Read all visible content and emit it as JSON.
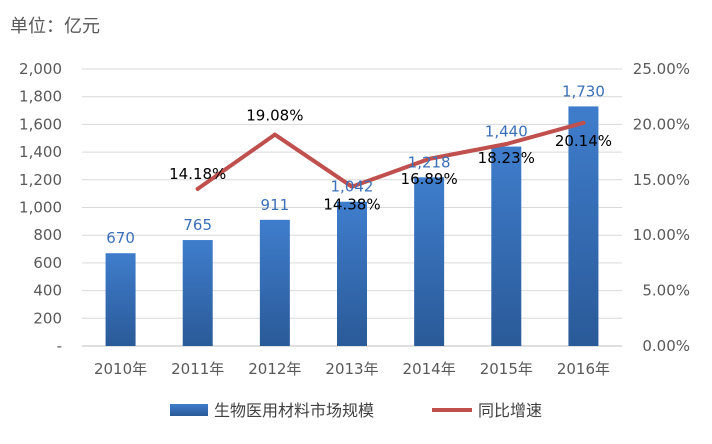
{
  "unit_label": "单位：亿元",
  "chart_data": {
    "type": "bar",
    "title": "",
    "categories": [
      "2010年",
      "2011年",
      "2012年",
      "2013年",
      "2014年",
      "2015年",
      "2016年"
    ],
    "series": [
      {
        "name": "生物医用材料市场规模",
        "type": "bar",
        "axis": "left",
        "values": [
          670,
          765,
          911,
          1042,
          1218,
          1440,
          1730
        ],
        "labels": [
          "670",
          "765",
          "911",
          "1,042",
          "1,218",
          "1,440",
          "1,730"
        ],
        "color": "#3a70b8"
      },
      {
        "name": "同比增速",
        "type": "line",
        "axis": "right",
        "values": [
          null,
          14.18,
          19.08,
          14.38,
          16.89,
          18.23,
          20.14
        ],
        "labels": [
          "",
          "14.18%",
          "19.08%",
          "14.38%",
          "16.89%",
          "18.23%",
          "20.14%"
        ],
        "color": "#c0504d"
      }
    ],
    "y_left": {
      "min": 0,
      "max": 2000,
      "ticks": [
        "-",
        "200",
        "400",
        "600",
        "800",
        "1,000",
        "1,200",
        "1,400",
        "1,600",
        "1,800",
        "2,000"
      ]
    },
    "y_right": {
      "min": 0,
      "max": 25,
      "ticks": [
        "0.00%",
        "5.00%",
        "10.00%",
        "15.00%",
        "20.00%",
        "25.00%"
      ]
    },
    "grid": true,
    "legend_position": "bottom"
  }
}
